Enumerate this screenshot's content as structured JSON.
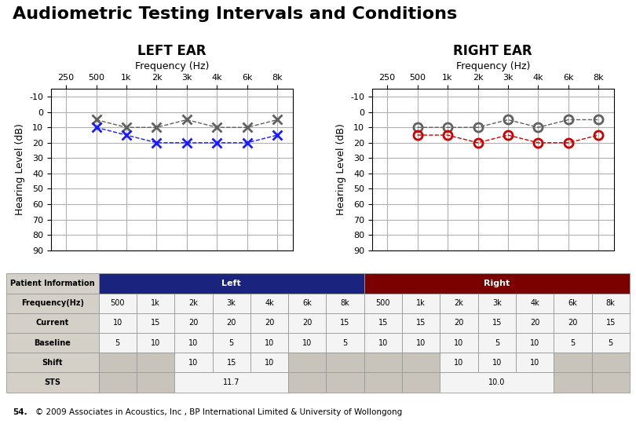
{
  "title": "Audiometric Testing Intervals and Conditions",
  "annotations": [
    "54.",
    "© 2009 Associates in Acoustics, Inc , BP International Limited & University of Wollongong"
  ],
  "chart_data": [
    {
      "type": "line",
      "title": "LEFT EAR",
      "x_label": "Frequency (Hz)",
      "y_label": "Hearing Level (dB)",
      "categories": [
        "250",
        "500",
        "1k",
        "2k",
        "3k",
        "4k",
        "6k",
        "8k"
      ],
      "series": [
        {
          "color": "#606060",
          "marker": "x",
          "line_style": "dashed",
          "values": [
            null,
            5,
            10,
            10,
            5,
            10,
            10,
            5
          ]
        },
        {
          "color": "#1a1aff",
          "marker": "x",
          "line_style": "dashed",
          "values": [
            null,
            10,
            15,
            20,
            20,
            20,
            20,
            15
          ]
        }
      ],
      "ylim": [
        90,
        -15
      ],
      "yticks": [
        -10,
        0,
        10,
        20,
        30,
        40,
        50,
        60,
        70,
        80,
        90
      ],
      "grid": true
    },
    {
      "type": "line",
      "title": "RIGHT EAR",
      "x_label": "Frequency (Hz)",
      "y_label": "Hearing Level (dB)",
      "categories": [
        "250",
        "500",
        "1k",
        "2k",
        "3k",
        "4k",
        "6k",
        "8k"
      ],
      "series": [
        {
          "color": "#606060",
          "marker": "circle",
          "line_style": "dashed",
          "values": [
            null,
            10,
            10,
            10,
            5,
            10,
            5,
            5
          ]
        },
        {
          "color": "#cc0000",
          "marker": "circle",
          "line_style": "dashed",
          "values": [
            null,
            15,
            15,
            20,
            15,
            20,
            20,
            15
          ]
        }
      ],
      "ylim": [
        90,
        -15
      ],
      "yticks": [
        -10,
        0,
        10,
        20,
        30,
        40,
        50,
        60,
        70,
        80,
        90
      ],
      "grid": true
    },
    {
      "type": "table",
      "label_color": "#d4d0c8",
      "cell_color": "#f4f4f4",
      "empty_color": "#c8c4bc",
      "header": {
        "label": "Patient Information",
        "groups": [
          {
            "label": "Left",
            "color": "#1a237e",
            "span": 7
          },
          {
            "label": "Right",
            "color": "#7b0000",
            "span": 7
          }
        ]
      },
      "rows": [
        {
          "label": "Frequency(Hz)",
          "cells": [
            "500",
            "1k",
            "2k",
            "3k",
            "4k",
            "6k",
            "8k",
            "500",
            "1k",
            "2k",
            "3k",
            "4k",
            "6k",
            "8k"
          ]
        },
        {
          "label": "Current",
          "cells": [
            10,
            15,
            20,
            20,
            20,
            20,
            15,
            15,
            15,
            20,
            15,
            20,
            20,
            15
          ]
        },
        {
          "label": "Baseline",
          "cells": [
            5,
            10,
            10,
            5,
            10,
            10,
            5,
            10,
            10,
            10,
            5,
            10,
            5,
            5
          ]
        },
        {
          "label": "Shift",
          "cells": [
            null,
            null,
            10,
            15,
            10,
            null,
            null,
            null,
            null,
            10,
            10,
            10,
            null,
            null
          ]
        },
        {
          "label": "STS",
          "cells": [
            null,
            null,
            {
              "value": 11.7,
              "span": 3
            },
            null,
            null,
            null,
            null,
            {
              "value": 10.0,
              "span": 3
            },
            null,
            null
          ]
        }
      ]
    }
  ]
}
